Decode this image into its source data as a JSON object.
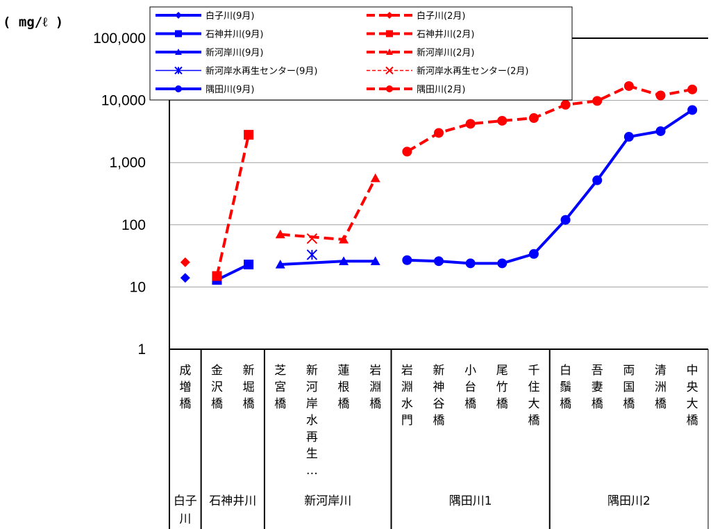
{
  "chart_data": {
    "type": "line",
    "ylabel": "( mg/ℓ )",
    "yscale": "log",
    "ylim": [
      1,
      100000
    ],
    "y_ticks": [
      "1",
      "10",
      "100",
      "1,000",
      "10,000",
      "100,000"
    ],
    "grid": true,
    "legend_position": "top",
    "categories": [
      "成増橋",
      "金沢橋",
      "新堀橋",
      "芝宮橋",
      "新河岸水再生…",
      "蓮根橋",
      "岩淵橋",
      "岩淵水門",
      "新神谷橋",
      "小台橋",
      "尾竹橋",
      "千住大橋",
      "白鬚橋",
      "吾妻橋",
      "両国橋",
      "清洲橋",
      "中央大橋"
    ],
    "groups": [
      {
        "label": "白子川",
        "start": 0,
        "end": 0
      },
      {
        "label": "石神井川",
        "start": 1,
        "end": 2
      },
      {
        "label": "新河岸川",
        "start": 3,
        "end": 6
      },
      {
        "label": "隅田川1",
        "start": 7,
        "end": 11
      },
      {
        "label": "隅田川2",
        "start": 12,
        "end": 16
      }
    ],
    "series": [
      {
        "name": "白子川(9月)",
        "color": "#0000ff",
        "dash": false,
        "marker": "diamond",
        "points": [
          {
            "i": 0,
            "y": 14
          }
        ]
      },
      {
        "name": "白子川(2月)",
        "color": "#ff0000",
        "dash": true,
        "marker": "diamond",
        "points": [
          {
            "i": 0,
            "y": 25
          }
        ]
      },
      {
        "name": "石神井川(9月)",
        "color": "#0000ff",
        "dash": false,
        "marker": "square",
        "points": [
          {
            "i": 1,
            "y": 13
          },
          {
            "i": 2,
            "y": 23
          }
        ]
      },
      {
        "name": "石神井川(2月)",
        "color": "#ff0000",
        "dash": true,
        "marker": "square",
        "points": [
          {
            "i": 1,
            "y": 15
          },
          {
            "i": 2,
            "y": 2800
          }
        ]
      },
      {
        "name": "新河岸川(9月)",
        "color": "#0000ff",
        "dash": false,
        "marker": "triangle",
        "points": [
          {
            "i": 3,
            "y": 23
          },
          {
            "i": 5,
            "y": 26
          },
          {
            "i": 6,
            "y": 26
          }
        ]
      },
      {
        "name": "新河岸川(2月)",
        "color": "#ff0000",
        "dash": true,
        "marker": "triangle",
        "points": [
          {
            "i": 3,
            "y": 70
          },
          {
            "i": 5,
            "y": 58
          },
          {
            "i": 6,
            "y": 560
          }
        ]
      },
      {
        "name": "新河岸水再生センター(9月)",
        "color": "#0000ff",
        "dash": false,
        "marker": "star",
        "points": [
          {
            "i": 4,
            "y": 33
          }
        ]
      },
      {
        "name": "新河岸水再生センター(2月)",
        "color": "#ff0000",
        "dash": true,
        "marker": "x",
        "points": [
          {
            "i": 4,
            "y": 60
          }
        ]
      },
      {
        "name": "隅田川(9月)",
        "color": "#0000ff",
        "dash": false,
        "marker": "circle",
        "points": [
          {
            "i": 7,
            "y": 27
          },
          {
            "i": 8,
            "y": 26
          },
          {
            "i": 9,
            "y": 24
          },
          {
            "i": 10,
            "y": 24
          },
          {
            "i": 11,
            "y": 34
          },
          {
            "i": 12,
            "y": 120
          },
          {
            "i": 13,
            "y": 520
          },
          {
            "i": 14,
            "y": 2600
          },
          {
            "i": 15,
            "y": 3200
          },
          {
            "i": 16,
            "y": 7000
          }
        ]
      },
      {
        "name": "隅田川(2月)",
        "color": "#ff0000",
        "dash": true,
        "marker": "circle",
        "points": [
          {
            "i": 7,
            "y": 1500
          },
          {
            "i": 8,
            "y": 3000
          },
          {
            "i": 9,
            "y": 4200
          },
          {
            "i": 10,
            "y": 4700
          },
          {
            "i": 11,
            "y": 5200
          },
          {
            "i": 12,
            "y": 8500
          },
          {
            "i": 13,
            "y": 9800
          },
          {
            "i": 14,
            "y": 17000
          },
          {
            "i": 15,
            "y": 12000
          },
          {
            "i": 16,
            "y": 15000
          }
        ]
      }
    ]
  }
}
